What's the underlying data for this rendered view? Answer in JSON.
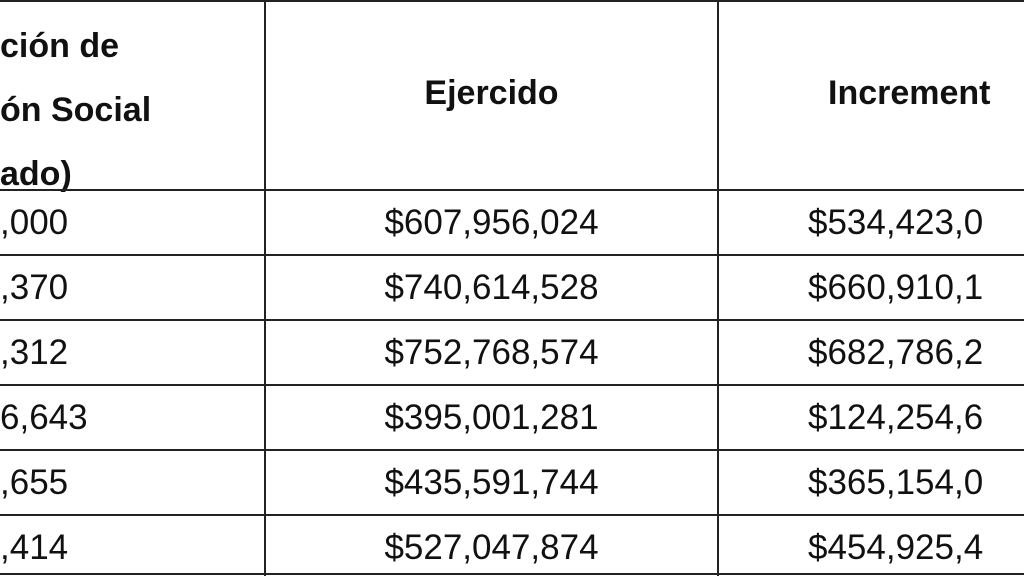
{
  "table": {
    "header": [
      [
        "ción de",
        "ón Social",
        "ado)"
      ],
      "Ejercido",
      "Increment"
    ],
    "rows": [
      [
        ",000",
        "$607,956,024",
        "$534,423,0"
      ],
      [
        ",370",
        "$740,614,528",
        "$660,910,1"
      ],
      [
        ",312",
        "$752,768,574",
        "$682,786,2"
      ],
      [
        "6,643",
        "$395,001,281",
        "$124,254,6"
      ],
      [
        ",655",
        "$435,591,744",
        "$365,154,0"
      ],
      [
        ",414",
        "$527,047,874",
        "$454,925,4"
      ]
    ]
  }
}
